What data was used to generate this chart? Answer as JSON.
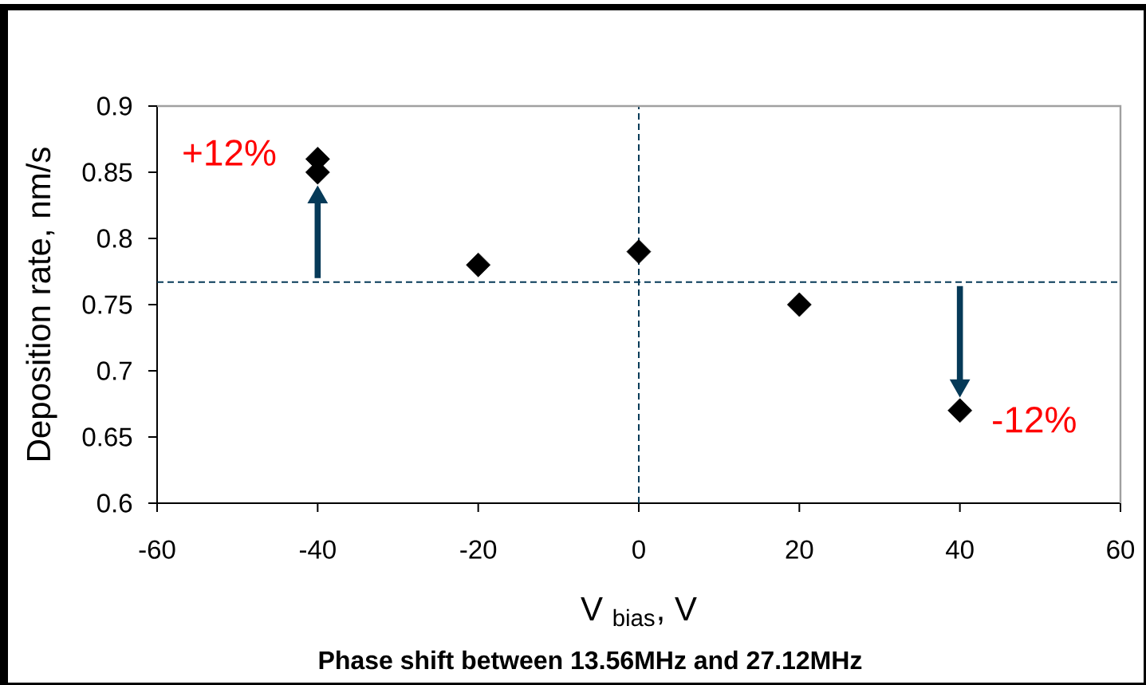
{
  "chart_data": {
    "type": "scatter",
    "xlabel": "V $_{bias}$, V",
    "ylabel": "Deposition rate, nm/s",
    "x": [
      -40,
      -40,
      -20,
      0,
      20,
      40
    ],
    "values": [
      0.86,
      0.85,
      0.78,
      0.79,
      0.75,
      0.67
    ],
    "color": "#000000",
    "marker": "diamond",
    "xlim": [
      -60,
      60
    ],
    "ylim": [
      0.6,
      0.9
    ],
    "xticks": [
      -60,
      -40,
      -20,
      0,
      20,
      40,
      60
    ],
    "yticks": [
      0.6,
      0.65,
      0.7,
      0.75,
      0.8,
      0.85,
      0.9
    ],
    "ref_lines": [
      {
        "axis": "y",
        "value": 0.767,
        "color": "#063a58",
        "line_style": "dashed"
      },
      {
        "axis": "x",
        "value": 0,
        "color": "#063a58",
        "line_style": "dashed"
      }
    ],
    "annotations": [
      {
        "text": "+12%",
        "x": -40,
        "y": 0.85
      },
      {
        "text": "-12%",
        "x": 40,
        "y": 0.67
      },
      "Phase shift between 13.56MHz and 27.12MHz"
    ]
  }
}
